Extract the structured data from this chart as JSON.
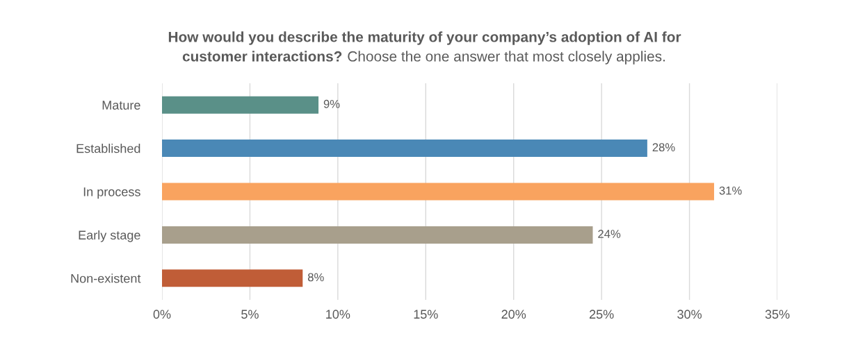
{
  "chart_data": {
    "type": "bar",
    "orientation": "horizontal",
    "title": "How would you describe the maturity of your company’s adoption of AI for\ncustomer interactions?",
    "subtitle": "Choose the one answer that most closely applies.",
    "categories": [
      "Mature",
      "Established",
      "In process",
      "Early stage",
      "Non-existent"
    ],
    "values": [
      8.9,
      27.6,
      31.4,
      24.5,
      8.0
    ],
    "colors": [
      "#5a9088",
      "#4a88b6",
      "#f9a35f",
      "#a89f8c",
      "#c05d37"
    ],
    "value_labels": [
      "9%",
      "28%",
      "31%",
      "24%",
      "8%"
    ],
    "xlim": [
      0,
      35
    ],
    "xticks": [
      {
        "value": 0,
        "label": "0%"
      },
      {
        "value": 5,
        "label": "5%"
      },
      {
        "value": 10,
        "label": "10%"
      },
      {
        "value": 15,
        "label": "15%"
      },
      {
        "value": 20,
        "label": "20%"
      },
      {
        "value": 25,
        "label": "25%"
      },
      {
        "value": 30,
        "label": "30%"
      },
      {
        "value": 35,
        "label": "35%"
      }
    ],
    "grid": "x",
    "legend": false
  }
}
